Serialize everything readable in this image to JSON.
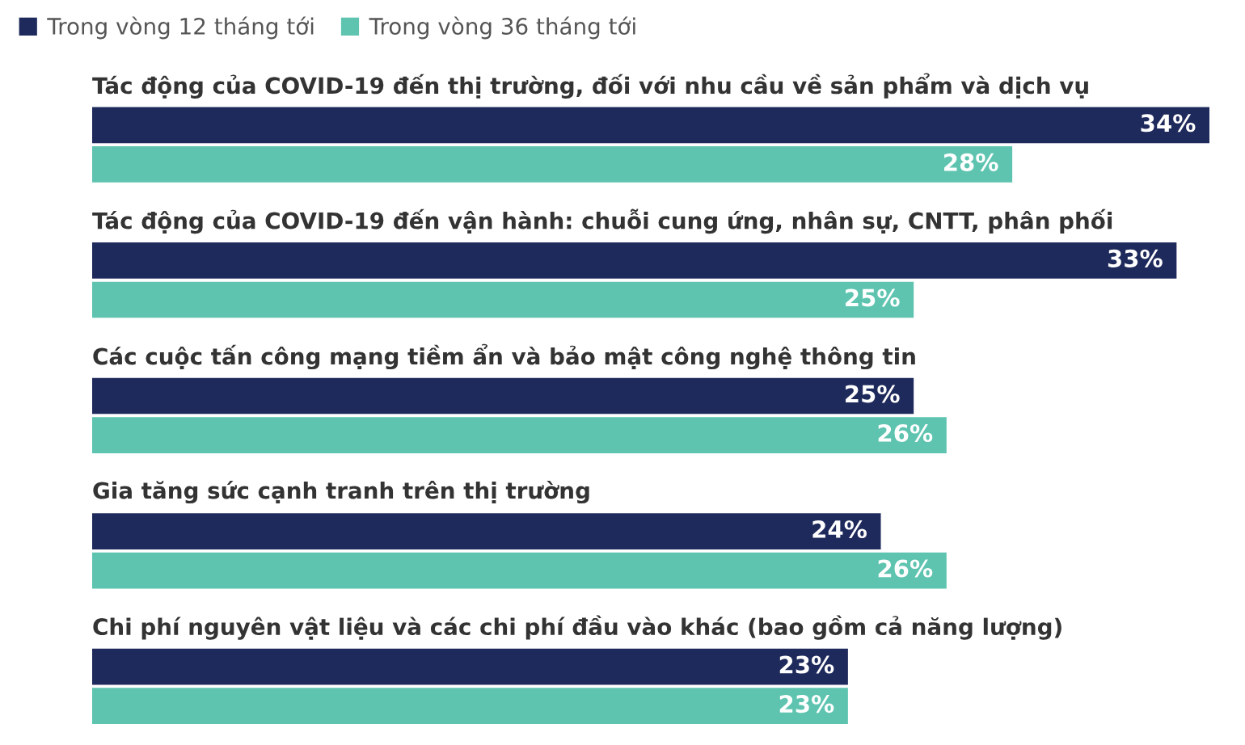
{
  "chart_data": {
    "type": "bar",
    "orientation": "horizontal",
    "categories": [
      "Tác động của COVID-19 đến thị trường, đối với nhu cầu về sản phẩm và dịch vụ",
      "Tác động của COVID-19 đến vận hành: chuỗi cung ứng, nhân sự, CNTT, phân phối",
      "Các cuộc tấn công mạng tiềm ẩn và bảo mật công nghệ thông tin",
      "Gia tăng sức cạnh tranh trên thị trường",
      "Chi phí nguyên vật liệu và các chi phí đầu vào khác (bao gồm cả năng lượng)"
    ],
    "series": [
      {
        "name": "Trong vòng 12 tháng tới",
        "color": "#1f2a5c",
        "values": [
          34,
          33,
          25,
          24,
          23
        ],
        "value_labels": [
          "34%",
          "33%",
          "25%",
          "24%",
          "23%"
        ]
      },
      {
        "name": "Trong vòng 36 tháng tới",
        "color": "#5ec4b0",
        "values": [
          28,
          25,
          26,
          26,
          23
        ],
        "value_labels": [
          "28%",
          "25%",
          "26%",
          "26%",
          "23%"
        ]
      }
    ],
    "legend": "top left"
  }
}
